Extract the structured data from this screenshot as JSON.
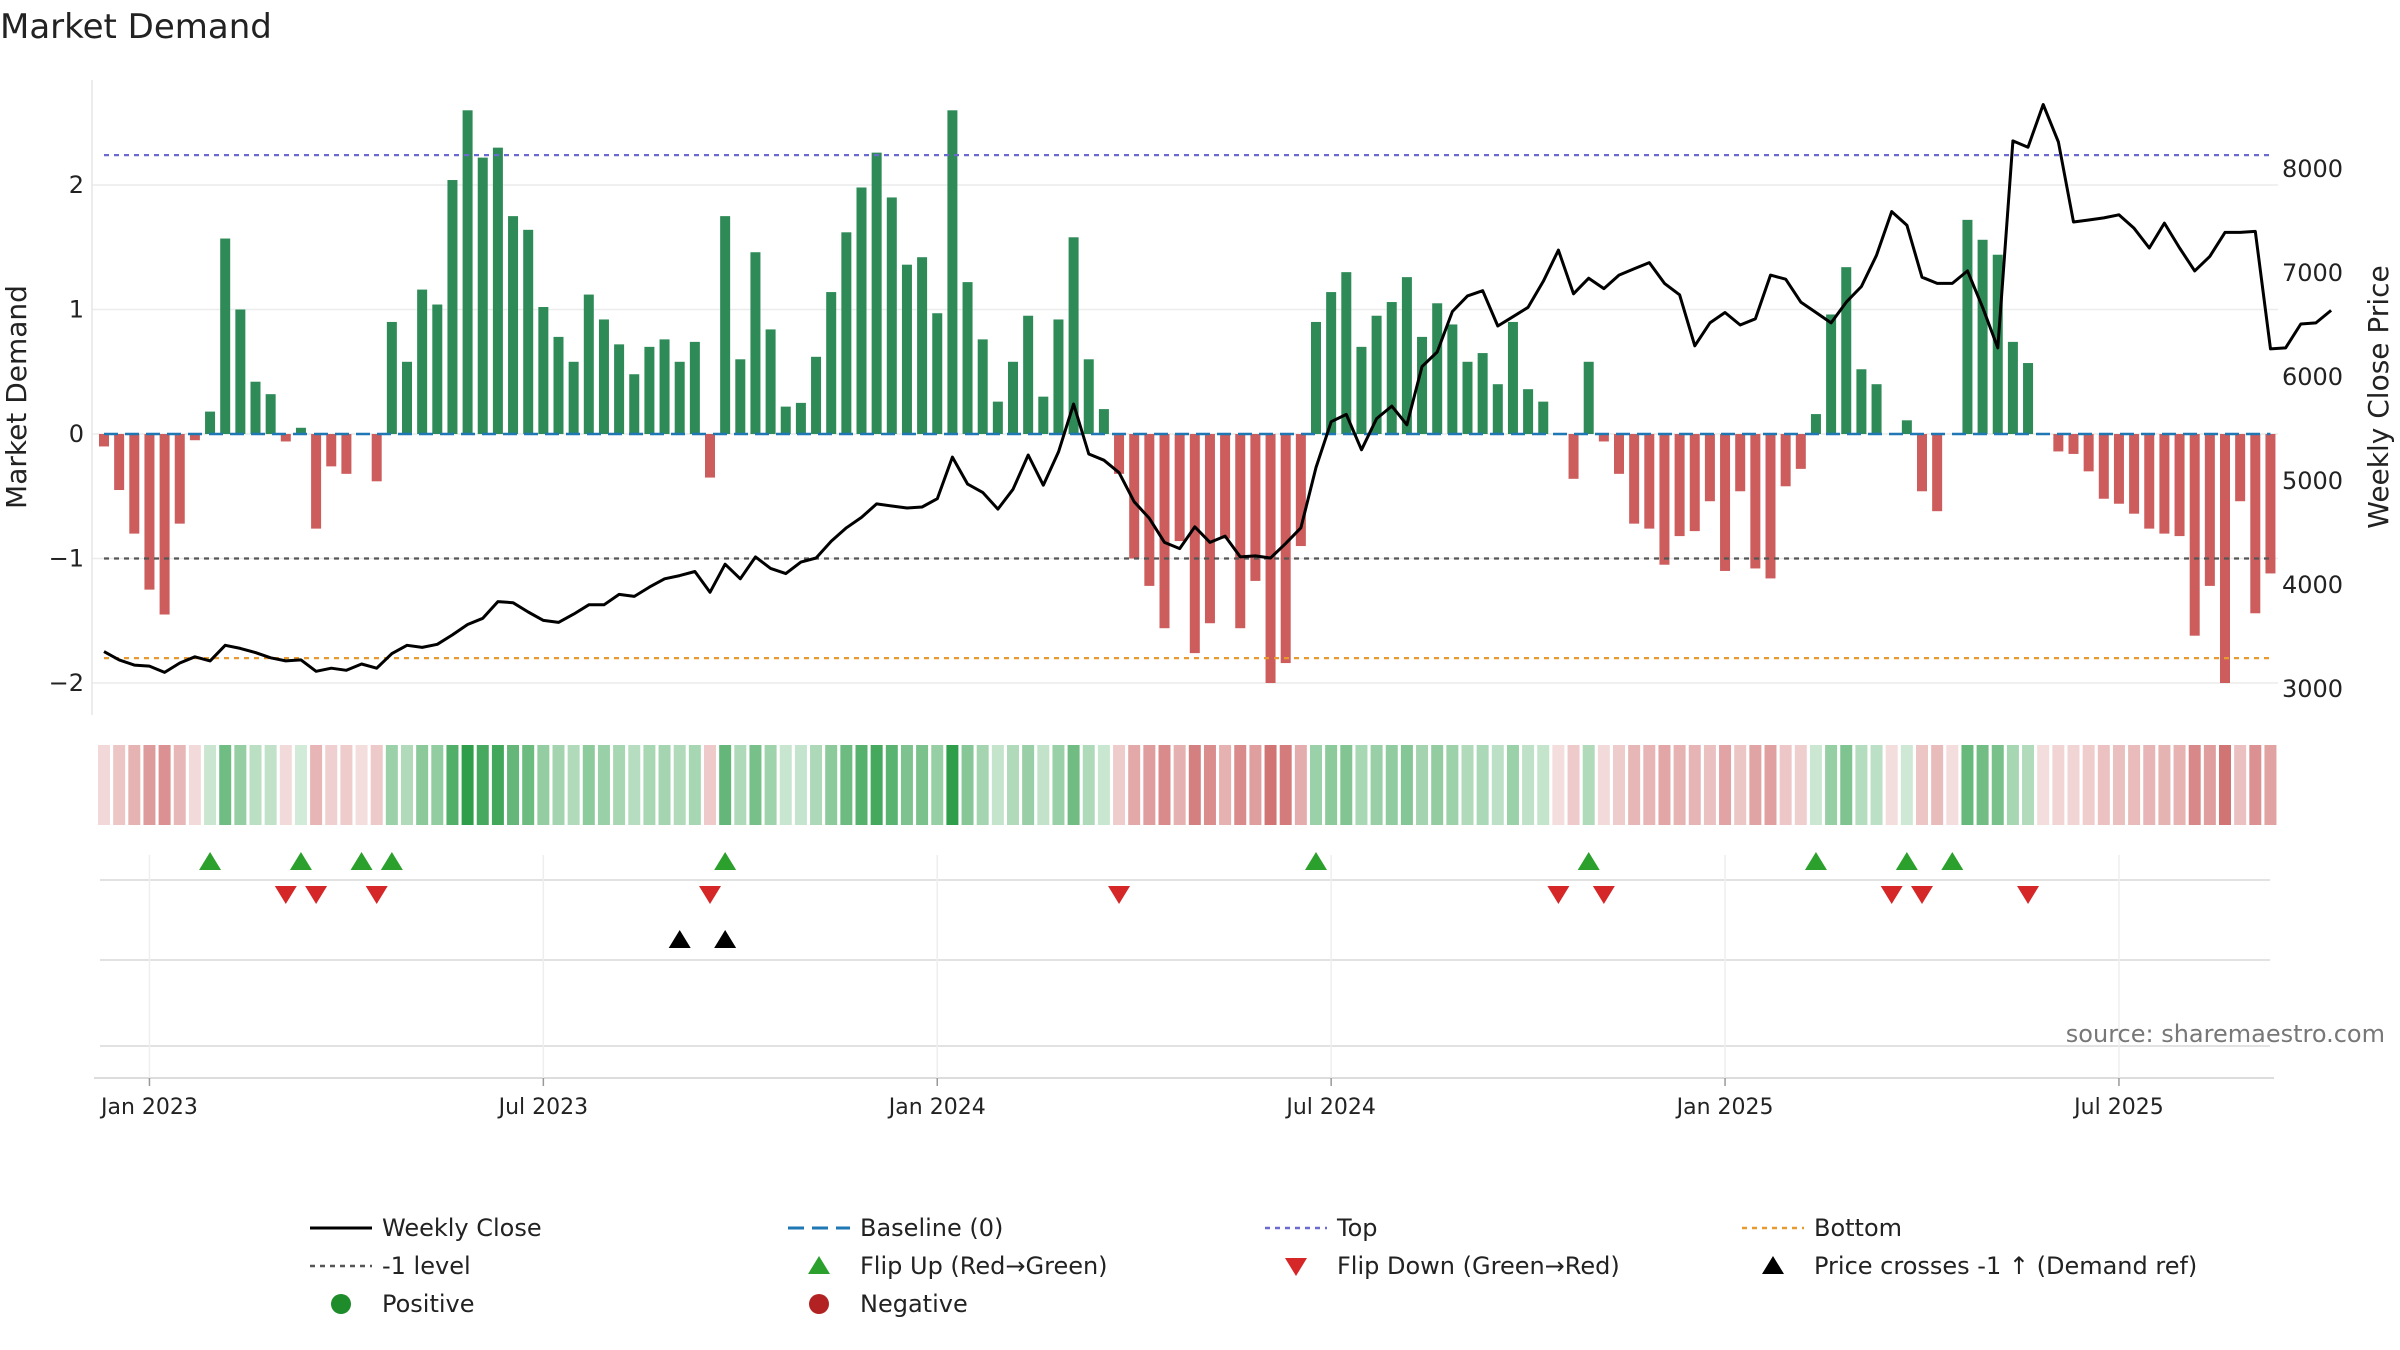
{
  "chart_data": {
    "type": "bar",
    "title": "Market Demand",
    "ylabel": "Market Demand",
    "y2label": "Weekly Close Price",
    "ylim": [
      -2.25,
      2.85
    ],
    "y2lim": [
      2800,
      8900
    ],
    "yticks": [
      {
        "value": 2,
        "label": "2"
      },
      {
        "value": 1,
        "label": "1"
      },
      {
        "value": 0,
        "label": "0"
      },
      {
        "value": -1,
        "label": "−1"
      },
      {
        "value": -2,
        "label": "−2"
      }
    ],
    "y2ticks": [
      {
        "value": 8000,
        "label": "8000"
      },
      {
        "value": 7000,
        "label": "7000"
      },
      {
        "value": 6000,
        "label": "6000"
      },
      {
        "value": 5000,
        "label": "5000"
      },
      {
        "value": 4000,
        "label": "4000"
      },
      {
        "value": 3000,
        "label": "3000"
      }
    ],
    "xticks": [
      {
        "week": 3,
        "label": "Jan 2023"
      },
      {
        "week": 29,
        "label": "Jul 2023"
      },
      {
        "week": 55,
        "label": "Jan 2024"
      },
      {
        "week": 81,
        "label": "Jul 2024"
      },
      {
        "week": 107,
        "label": "Jan 2025"
      },
      {
        "week": 133,
        "label": "Jul 2025"
      }
    ],
    "weeks": 144,
    "demand": [
      -0.1,
      -0.45,
      -0.8,
      -1.25,
      -1.45,
      -0.72,
      -0.05,
      0.18,
      1.57,
      1,
      0.42,
      0.32,
      -0.06,
      0.05,
      -0.76,
      -0.26,
      -0.32,
      0,
      -0.38,
      0.9,
      0.58,
      1.16,
      1.04,
      2.04,
      2.6,
      2.22,
      2.3,
      1.75,
      1.64,
      1.02,
      0.78,
      0.58,
      1.12,
      0.92,
      0.72,
      0.48,
      0.7,
      0.76,
      0.58,
      0.74,
      -0.35,
      1.75,
      0.6,
      1.46,
      0.84,
      0.22,
      0.25,
      0.62,
      1.14,
      1.62,
      1.98,
      2.26,
      1.9,
      1.36,
      1.42,
      0.97,
      2.6,
      1.22,
      0.76,
      0.26,
      0.58,
      0.95,
      0.3,
      0.92,
      1.58,
      0.6,
      0.2,
      -0.32,
      -1,
      -1.22,
      -1.56,
      -0.86,
      -1.76,
      -1.52,
      -0.84,
      -1.56,
      -1.18,
      -2,
      -1.84,
      -0.9,
      0.9,
      1.14,
      1.3,
      0.7,
      0.95,
      1.06,
      1.26,
      0.78,
      1.05,
      0.88,
      0.58,
      0.65,
      0.4,
      0.9,
      0.36,
      0.26,
      0,
      -0.36,
      0.58,
      -0.06,
      -0.32,
      -0.72,
      -0.76,
      -1.05,
      -0.82,
      -0.78,
      -0.54,
      -1.1,
      -0.46,
      -1.08,
      -1.16,
      -0.42,
      -0.28,
      0.16,
      0.96,
      1.34,
      0.52,
      0.4,
      0,
      0.11,
      -0.46,
      -0.62,
      0,
      1.72,
      1.56,
      1.44,
      0.74,
      0.57,
      0,
      -0.14,
      -0.16,
      -0.3,
      -0.52,
      -0.56,
      -0.64,
      -0.76,
      -0.8,
      -0.82,
      -1.62,
      -1.22,
      -2,
      -0.54,
      -1.44,
      -1.12
    ],
    "price": [
      3360,
      3280,
      3230,
      3220,
      3160,
      3250,
      3310,
      3270,
      3420,
      3390,
      3350,
      3300,
      3270,
      3280,
      3170,
      3200,
      3180,
      3240,
      3200,
      3340,
      3420,
      3400,
      3430,
      3520,
      3620,
      3680,
      3840,
      3830,
      3740,
      3660,
      3640,
      3720,
      3810,
      3810,
      3910,
      3890,
      3980,
      4060,
      4090,
      4130,
      3930,
      4200,
      4060,
      4270,
      4160,
      4110,
      4220,
      4260,
      4420,
      4550,
      4650,
      4780,
      4760,
      4740,
      4750,
      4830,
      5230,
      4970,
      4890,
      4730,
      4920,
      5250,
      4960,
      5280,
      5740,
      5260,
      5200,
      5080,
      4800,
      4640,
      4410,
      4350,
      4560,
      4410,
      4470,
      4270,
      4280,
      4260,
      4400,
      4550,
      5130,
      5570,
      5640,
      5300,
      5600,
      5720,
      5540,
      6100,
      6240,
      6630,
      6780,
      6830,
      6490,
      6580,
      6670,
      6920,
      7220,
      6800,
      6950,
      6850,
      6980,
      7040,
      7100,
      6900,
      6790,
      6300,
      6520,
      6620,
      6500,
      6560,
      6980,
      6940,
      6720,
      6620,
      6520,
      6720,
      6870,
      7170,
      7590,
      7460,
      6960,
      6900,
      6900,
      7020,
      6670,
      6280,
      8270,
      8210,
      8620,
      8260,
      7490,
      7510,
      7530,
      7560,
      7430,
      7240,
      7480,
      7240,
      7020,
      7160,
      7390,
      7390,
      7400,
      6270,
      6280,
      6510,
      6520,
      6640
    ],
    "top_level": 2.24,
    "bottom_level": -1.8,
    "minus1_level": -1,
    "flip_up_weeks": [
      7,
      13,
      17,
      19,
      41,
      80,
      98,
      113,
      119,
      122
    ],
    "flip_down_weeks": [
      12,
      14,
      18,
      40,
      67,
      96,
      99,
      118,
      120,
      127
    ],
    "price_cross_weeks": [
      38,
      41
    ],
    "legend": [
      {
        "key": "weekly_close",
        "label": "Weekly Close",
        "color": "#000000"
      },
      {
        "key": "baseline",
        "label": "Baseline (0)",
        "color": "#1f77b4"
      },
      {
        "key": "top",
        "label": "Top",
        "color": "#6a6ad0"
      },
      {
        "key": "bottom",
        "label": "Bottom",
        "color": "#e89a2f"
      },
      {
        "key": "minus1",
        "label": "-1 level",
        "color": "#555555"
      },
      {
        "key": "flip_up",
        "label": "Flip Up (Red→Green)",
        "color": "#2ca02c"
      },
      {
        "key": "flip_down",
        "label": "Flip Down (Green→Red)",
        "color": "#d62728"
      },
      {
        "key": "price_cross",
        "label": "Price crosses -1 ↑ (Demand ref)",
        "color": "#000000"
      },
      {
        "key": "positive",
        "label": "Positive",
        "color": "#1e8c2a"
      },
      {
        "key": "negative",
        "label": "Negative",
        "color": "#b22222"
      }
    ],
    "source": "source: sharemaestro.com"
  },
  "colors": {
    "pos_bar": "#2e8b57",
    "neg_bar": "#cd5c5c"
  }
}
